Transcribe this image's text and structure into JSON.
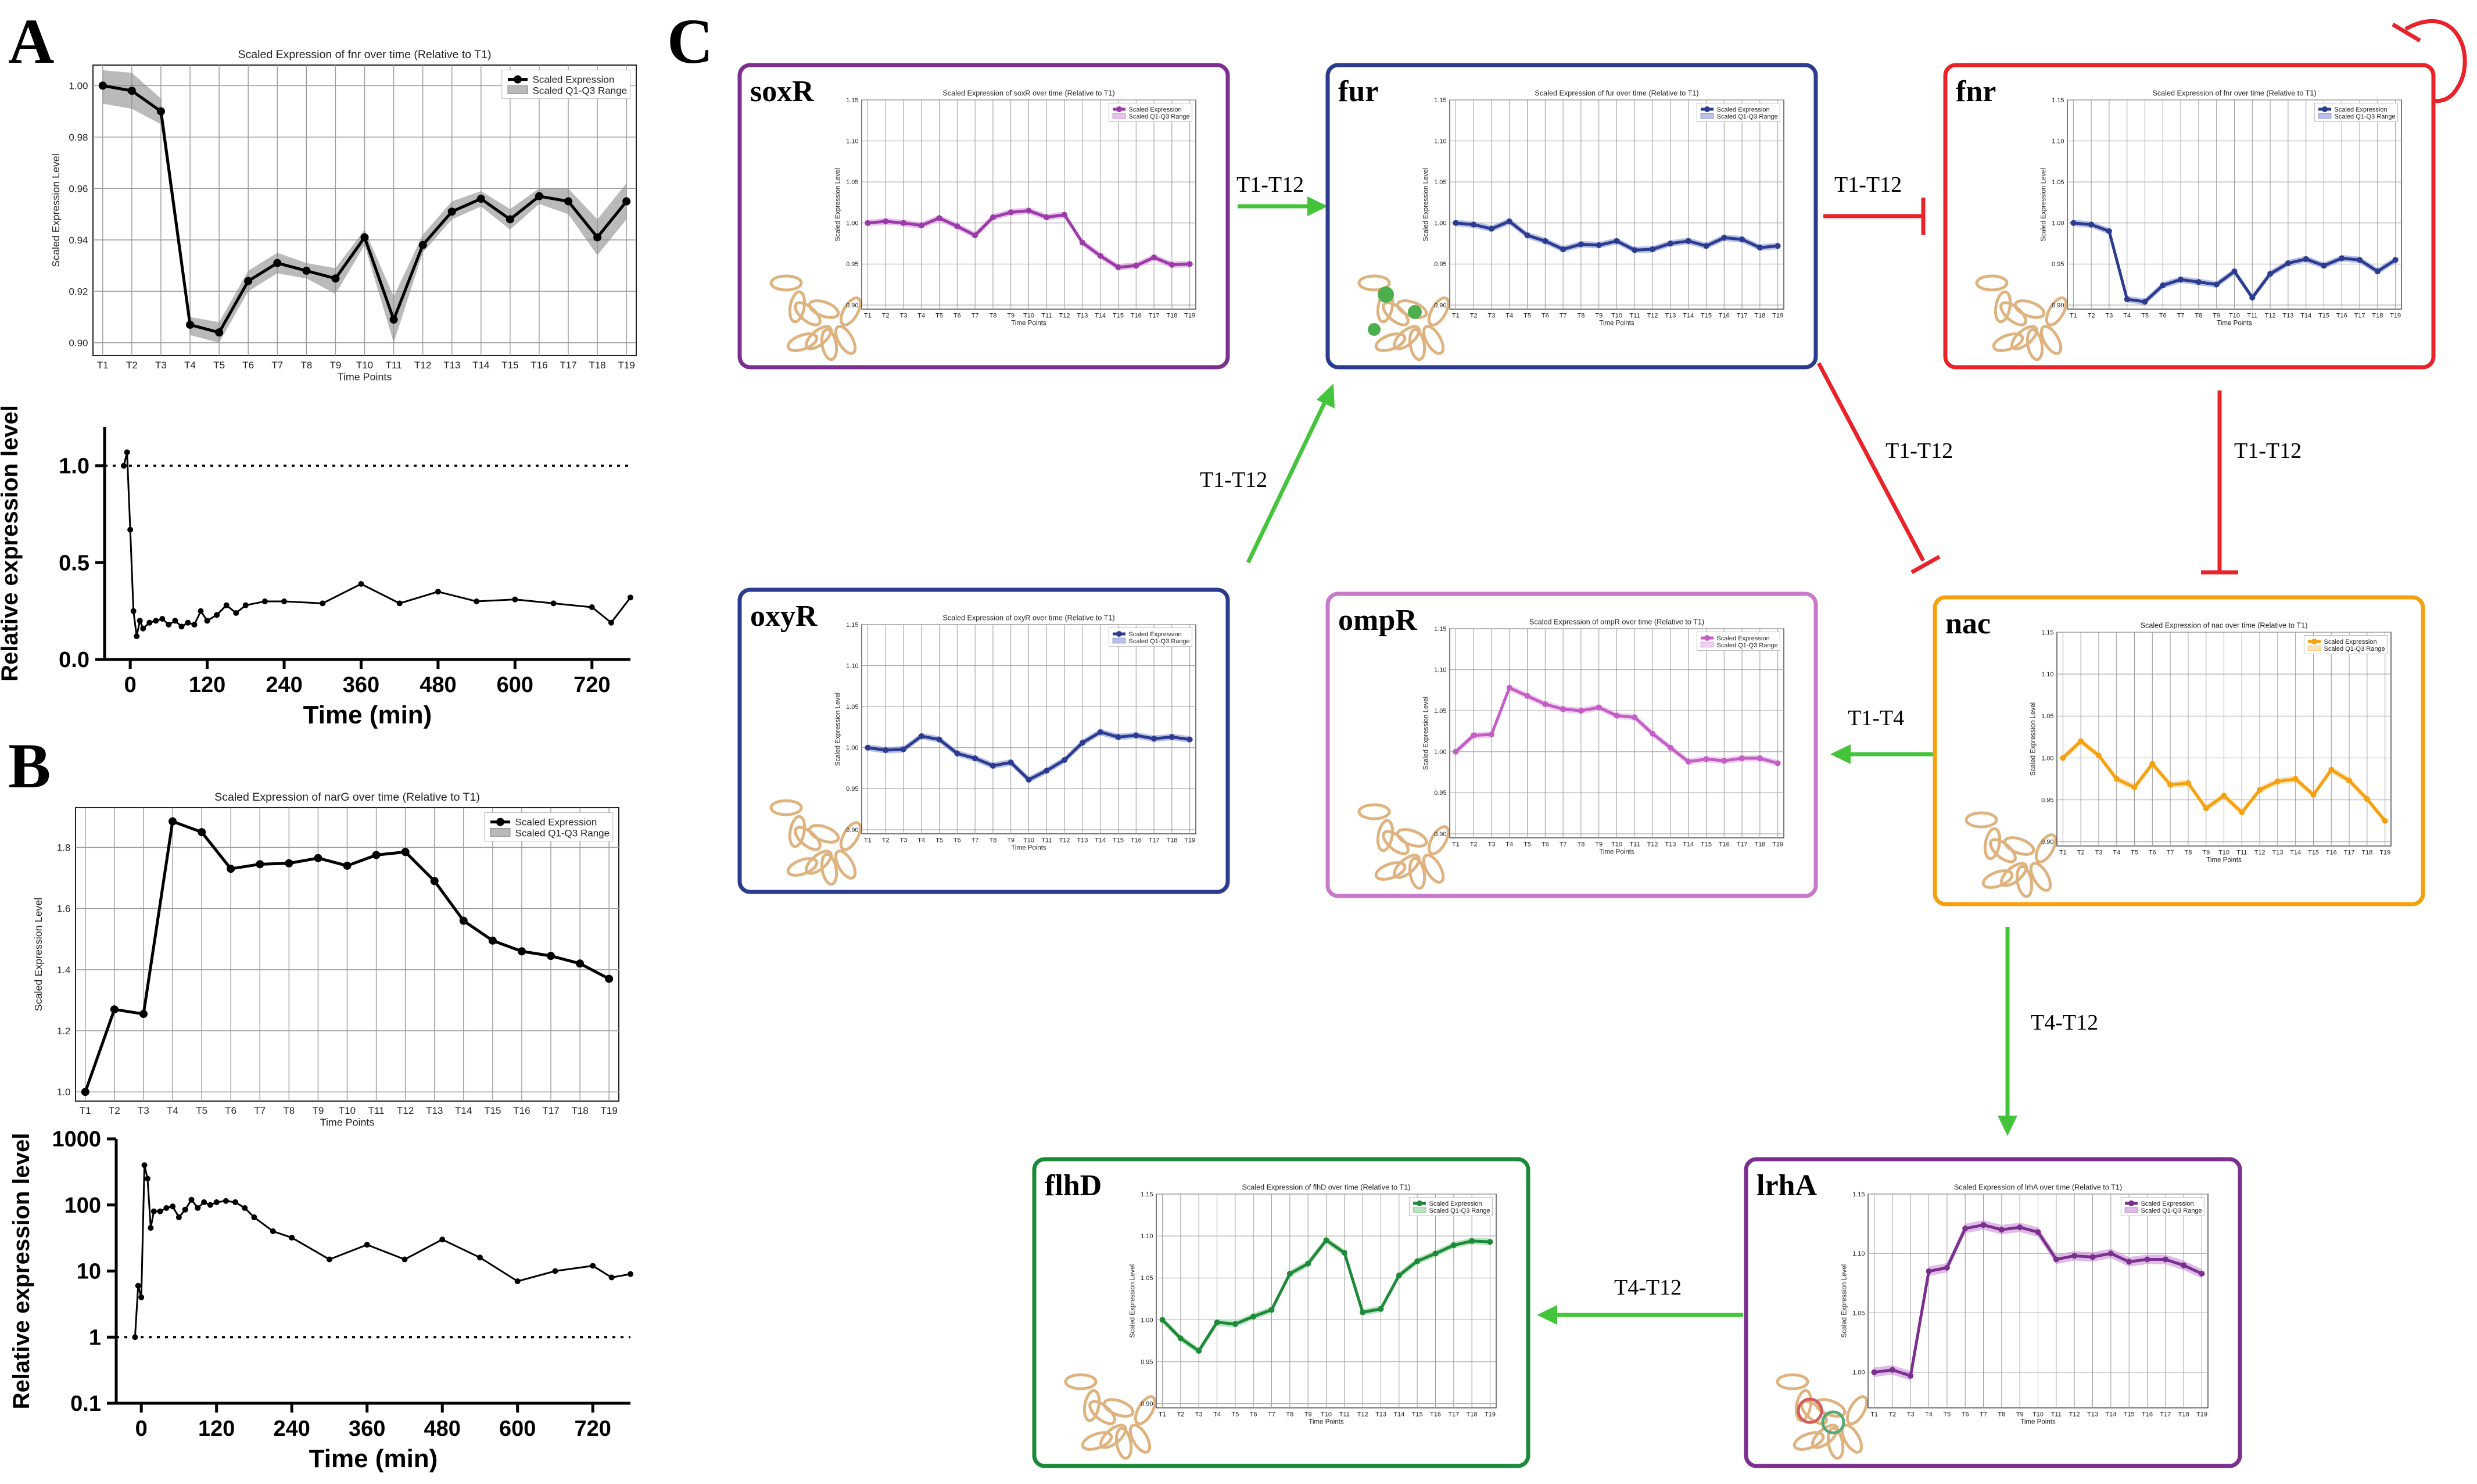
{
  "panel_labels": {
    "a": "A",
    "b": "B",
    "c": "C"
  },
  "colors": {
    "activation": "#44c43a",
    "repression": "#e8242a",
    "purple": "#7b2f8e",
    "blue": "#2b3b8f",
    "orange": "#f5a10f",
    "pink": "#c77ac8",
    "green": "#1d8a3a"
  },
  "timepoints": [
    "T1",
    "T2",
    "T3",
    "T4",
    "T5",
    "T6",
    "T7",
    "T8",
    "T9",
    "T10",
    "T11",
    "T12",
    "T13",
    "T14",
    "T15",
    "T16",
    "T17",
    "T18",
    "T19"
  ],
  "chart_data": [
    {
      "id": "A-top",
      "type": "line",
      "title": "Scaled Expression of fnr over time (Relative to T1)",
      "xlabel": "Time Points",
      "ylabel": "Scaled Expression Level",
      "ylim": [
        0.895,
        1.008
      ],
      "yticks": [
        0.9,
        0.92,
        0.94,
        0.96,
        0.98,
        1.0
      ],
      "ytick_labels": [
        "0.90",
        "0.92",
        "0.94",
        "0.96",
        "0.98",
        "1.00"
      ],
      "grid": true,
      "legend": [
        "Scaled Expression",
        "Scaled Q1-Q3 Range"
      ],
      "legend_position": "top-right",
      "series": [
        {
          "name": "Scaled Expression",
          "values": [
            1.0,
            0.998,
            0.99,
            0.907,
            0.904,
            0.924,
            0.931,
            0.928,
            0.925,
            0.941,
            0.909,
            0.938,
            0.951,
            0.956,
            0.948,
            0.957,
            0.955,
            0.941,
            0.955
          ]
        }
      ],
      "band": {
        "lower": [
          0.993,
          0.991,
          0.985,
          0.903,
          0.9,
          0.92,
          0.927,
          0.925,
          0.919,
          0.938,
          0.9,
          0.935,
          0.948,
          0.953,
          0.944,
          0.954,
          0.95,
          0.934,
          0.948
        ],
        "upper": [
          1.006,
          1.005,
          0.995,
          0.91,
          0.908,
          0.928,
          0.935,
          0.931,
          0.929,
          0.944,
          0.918,
          0.942,
          0.955,
          0.959,
          0.952,
          0.96,
          0.96,
          0.948,
          0.962
        ]
      }
    },
    {
      "id": "A-bottom",
      "type": "line",
      "xlabel": "Time (min)",
      "ylabel": "Relative expression level",
      "xlim": [
        -40,
        780
      ],
      "ylim": [
        0,
        1.2
      ],
      "xticks": [
        0,
        120,
        240,
        360,
        480,
        600,
        720
      ],
      "xtick_labels": [
        "0",
        "120",
        "240",
        "360",
        "480",
        "600",
        "720"
      ],
      "yticks": [
        0.0,
        0.5,
        1.0
      ],
      "ytick_labels": [
        "0.0",
        "0.5",
        "1.0"
      ],
      "reference_line": 1.0,
      "x": [
        -10,
        -5,
        0,
        5,
        10,
        15,
        20,
        30,
        40,
        50,
        60,
        70,
        80,
        90,
        100,
        110,
        120,
        135,
        150,
        165,
        180,
        210,
        240,
        300,
        360,
        420,
        480,
        540,
        600,
        660,
        720,
        750,
        780
      ],
      "y": [
        1.0,
        1.07,
        0.67,
        0.25,
        0.12,
        0.2,
        0.16,
        0.19,
        0.2,
        0.21,
        0.18,
        0.2,
        0.17,
        0.19,
        0.18,
        0.25,
        0.2,
        0.23,
        0.28,
        0.24,
        0.28,
        0.3,
        0.3,
        0.29,
        0.39,
        0.29,
        0.35,
        0.3,
        0.31,
        0.29,
        0.27,
        0.19,
        0.32
      ]
    },
    {
      "id": "B-top",
      "type": "line",
      "title": "Scaled Expression of narG over time (Relative to T1)",
      "xlabel": "Time Points",
      "ylabel": "Scaled Expression Level",
      "ylim": [
        0.97,
        1.93
      ],
      "yticks": [
        1.0,
        1.2,
        1.4,
        1.6,
        1.8
      ],
      "ytick_labels": [
        "1.0",
        "1.2",
        "1.4",
        "1.6",
        "1.8"
      ],
      "grid": true,
      "legend": [
        "Scaled Expression",
        "Scaled Q1-Q3 Range"
      ],
      "legend_position": "top-right",
      "series": [
        {
          "name": "Scaled Expression",
          "values": [
            1.0,
            1.27,
            1.255,
            1.885,
            1.85,
            1.73,
            1.745,
            1.748,
            1.765,
            1.74,
            1.775,
            1.785,
            1.69,
            1.56,
            1.495,
            1.46,
            1.445,
            1.42,
            1.37
          ]
        }
      ]
    },
    {
      "id": "B-bottom",
      "type": "line",
      "xlabel": "Time (min)",
      "ylabel": "Relative expression level",
      "yscale": "log",
      "xlim": [
        -40,
        780
      ],
      "ylim": [
        0.1,
        1000
      ],
      "xticks": [
        0,
        120,
        240,
        360,
        480,
        600,
        720
      ],
      "xtick_labels": [
        "0",
        "120",
        "240",
        "360",
        "480",
        "600",
        "720"
      ],
      "yticks": [
        0.1,
        1,
        10,
        100,
        1000
      ],
      "ytick_labels": [
        "0.1",
        "1",
        "10",
        "100",
        "1000"
      ],
      "reference_line": 1,
      "x": [
        -10,
        -5,
        0,
        5,
        10,
        15,
        20,
        30,
        40,
        50,
        60,
        70,
        80,
        90,
        100,
        110,
        120,
        135,
        150,
        165,
        180,
        210,
        240,
        300,
        360,
        420,
        480,
        540,
        600,
        660,
        720,
        750,
        780
      ],
      "y": [
        1,
        6,
        4,
        400,
        250,
        45,
        80,
        80,
        90,
        95,
        65,
        85,
        120,
        90,
        110,
        100,
        110,
        115,
        110,
        90,
        65,
        40,
        32,
        15,
        25,
        15,
        30,
        16,
        7,
        10,
        12,
        8,
        9
      ]
    },
    {
      "id": "soxR",
      "type": "line",
      "gene": "soxR",
      "title": "Scaled Expression of soxR over time (Relative to T1)",
      "xlabel": "Time Points",
      "ylabel": "Scaled Expression Level",
      "ylim": [
        0.895,
        1.15
      ],
      "yticks": [
        0.9,
        0.95,
        1.0,
        1.05,
        1.1,
        1.15
      ],
      "ytick_labels": [
        "0.90",
        "0.95",
        "1.00",
        "1.05",
        "1.10",
        "1.15"
      ],
      "legend": [
        "Scaled Expression",
        "Scaled Q1-Q3 Range"
      ],
      "series": [
        {
          "name": "Scaled Expression",
          "values": [
            1.0,
            1.002,
            1.0,
            0.997,
            1.006,
            0.996,
            0.985,
            1.007,
            1.013,
            1.015,
            1.007,
            1.01,
            0.976,
            0.96,
            0.946,
            0.948,
            0.958,
            0.949,
            0.95
          ]
        }
      ]
    },
    {
      "id": "fur",
      "type": "line",
      "gene": "fur",
      "title": "Scaled Expression of fur over time (Relative to T1)",
      "xlabel": "Time Points",
      "ylabel": "Scaled Expression Level",
      "ylim": [
        0.895,
        1.15
      ],
      "yticks": [
        0.9,
        0.95,
        1.0,
        1.05,
        1.1,
        1.15
      ],
      "ytick_labels": [
        "0.90",
        "0.95",
        "1.00",
        "1.05",
        "1.10",
        "1.15"
      ],
      "legend": [
        "Scaled Expression",
        "Scaled Q1-Q3 Range"
      ],
      "series": [
        {
          "name": "Scaled Expression",
          "values": [
            1.0,
            0.998,
            0.993,
            1.002,
            0.985,
            0.978,
            0.968,
            0.974,
            0.973,
            0.978,
            0.967,
            0.968,
            0.975,
            0.978,
            0.972,
            0.982,
            0.98,
            0.97,
            0.972
          ]
        }
      ]
    },
    {
      "id": "fnr",
      "type": "line",
      "gene": "fnr",
      "title": "Scaled Expression of fnr over time (Relative to T1)",
      "xlabel": "Time Points",
      "ylabel": "Scaled Expression Level",
      "ylim": [
        0.895,
        1.15
      ],
      "yticks": [
        0.9,
        0.95,
        1.0,
        1.05,
        1.1,
        1.15
      ],
      "ytick_labels": [
        "0.90",
        "0.95",
        "1.00",
        "1.05",
        "1.10",
        "1.15"
      ],
      "legend": [
        "Scaled Expression",
        "Scaled Q1-Q3 Range"
      ],
      "series": [
        {
          "name": "Scaled Expression",
          "values": [
            1.0,
            0.998,
            0.99,
            0.907,
            0.904,
            0.924,
            0.931,
            0.928,
            0.925,
            0.941,
            0.909,
            0.938,
            0.951,
            0.956,
            0.948,
            0.957,
            0.955,
            0.941,
            0.955
          ]
        }
      ]
    },
    {
      "id": "oxyR",
      "type": "line",
      "gene": "oxyR",
      "title": "Scaled Expression of oxyR over time (Relative to T1)",
      "xlabel": "Time Points",
      "ylabel": "Scaled Expression Level",
      "ylim": [
        0.895,
        1.15
      ],
      "yticks": [
        0.9,
        0.95,
        1.0,
        1.05,
        1.1,
        1.15
      ],
      "ytick_labels": [
        "0.90",
        "0.95",
        "1.00",
        "1.05",
        "1.10",
        "1.15"
      ],
      "legend": [
        "Scaled Expression",
        "Scaled Q1-Q3 Range"
      ],
      "series": [
        {
          "name": "Scaled Expression",
          "values": [
            1.0,
            0.997,
            0.998,
            1.014,
            1.01,
            0.993,
            0.987,
            0.978,
            0.982,
            0.961,
            0.972,
            0.985,
            1.006,
            1.019,
            1.013,
            1.015,
            1.011,
            1.013,
            1.01
          ]
        }
      ]
    },
    {
      "id": "ompR",
      "type": "line",
      "gene": "ompR",
      "title": "Scaled Expression of ompR over time (Relative to T1)",
      "xlabel": "Time Points",
      "ylabel": "Scaled Expression Level",
      "ylim": [
        0.895,
        1.15
      ],
      "yticks": [
        0.9,
        0.95,
        1.0,
        1.05,
        1.1,
        1.15
      ],
      "ytick_labels": [
        "0.90",
        "0.95",
        "1.00",
        "1.05",
        "1.10",
        "1.15"
      ],
      "legend": [
        "Scaled Expression",
        "Scaled Q1-Q3 Range"
      ],
      "series": [
        {
          "name": "Scaled Expression",
          "values": [
            1.0,
            1.02,
            1.021,
            1.078,
            1.068,
            1.058,
            1.052,
            1.05,
            1.054,
            1.044,
            1.042,
            1.022,
            1.005,
            0.988,
            0.991,
            0.989,
            0.992,
            0.992,
            0.986
          ]
        }
      ]
    },
    {
      "id": "nac",
      "type": "line",
      "gene": "nac",
      "title": "Scaled Expression of nac over time (Relative to T1)",
      "xlabel": "Time Points",
      "ylabel": "Scaled Expression Level",
      "ylim": [
        0.895,
        1.15
      ],
      "yticks": [
        0.9,
        0.95,
        1.0,
        1.05,
        1.1,
        1.15
      ],
      "ytick_labels": [
        "0.90",
        "0.95",
        "1.00",
        "1.05",
        "1.10",
        "1.15"
      ],
      "legend": [
        "Scaled Expression",
        "Scaled Q1-Q3 Range"
      ],
      "series": [
        {
          "name": "Scaled Expression",
          "values": [
            1.0,
            1.02,
            1.003,
            0.975,
            0.965,
            0.993,
            0.968,
            0.97,
            0.94,
            0.955,
            0.935,
            0.962,
            0.972,
            0.975,
            0.956,
            0.986,
            0.973,
            0.951,
            0.925
          ]
        }
      ]
    },
    {
      "id": "flhD",
      "type": "line",
      "gene": "flhD",
      "title": "Scaled Expression of flhD over time (Relative to T1)",
      "xlabel": "Time Points",
      "ylabel": "Scaled Expression Level",
      "ylim": [
        0.895,
        1.15
      ],
      "yticks": [
        0.9,
        0.95,
        1.0,
        1.05,
        1.1,
        1.15
      ],
      "ytick_labels": [
        "0.90",
        "0.95",
        "1.00",
        "1.05",
        "1.10",
        "1.15"
      ],
      "legend": [
        "Scaled Expression",
        "Scaled Q1-Q3 Range"
      ],
      "series": [
        {
          "name": "Scaled Expression",
          "values": [
            1.0,
            0.978,
            0.963,
            0.997,
            0.995,
            1.004,
            1.012,
            1.055,
            1.067,
            1.095,
            1.08,
            1.009,
            1.013,
            1.053,
            1.07,
            1.079,
            1.089,
            1.094,
            1.093
          ]
        }
      ]
    },
    {
      "id": "lrhA",
      "type": "line",
      "gene": "lrhA",
      "title": "Scaled Expression of lrhA over time (Relative to T1)",
      "xlabel": "Time Points",
      "ylabel": "Scaled Expression Level",
      "ylim": [
        0.97,
        1.15
      ],
      "yticks": [
        1.0,
        1.05,
        1.1,
        1.15
      ],
      "ytick_labels": [
        "1.00",
        "1.05",
        "1.10",
        "1.15"
      ],
      "legend": [
        "Scaled Expression",
        "Scaled Q1-Q3 Range"
      ],
      "series": [
        {
          "name": "Scaled Expression",
          "values": [
            1.0,
            1.002,
            0.997,
            1.085,
            1.088,
            1.121,
            1.124,
            1.12,
            1.122,
            1.118,
            1.095,
            1.098,
            1.097,
            1.1,
            1.093,
            1.095,
            1.095,
            1.09,
            1.083
          ]
        }
      ]
    }
  ],
  "network": {
    "edges": [
      {
        "id": "e1",
        "label": "T1-T12"
      },
      {
        "id": "e2",
        "label": "T1-T12"
      },
      {
        "id": "e3",
        "label": "T1-T12"
      },
      {
        "id": "e4",
        "label": "T1-T12"
      },
      {
        "id": "e5",
        "label": "T1-T12"
      },
      {
        "id": "e6",
        "label": "T1-T4"
      },
      {
        "id": "e7",
        "label": "T4-T12"
      },
      {
        "id": "e8",
        "label": "T4-T12"
      }
    ]
  }
}
